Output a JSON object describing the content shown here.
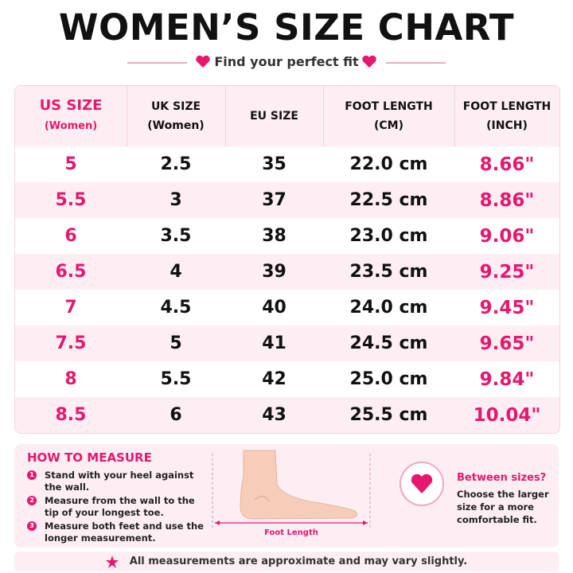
{
  "header": {
    "title": "WOMEN’S SIZE CHART",
    "subtitle": "Find your perfect fit"
  },
  "table": {
    "headers": [
      [
        "US SIZE",
        "(Women)"
      ],
      [
        "UK SIZE",
        "(Women)"
      ],
      [
        "EU SIZE"
      ],
      [
        "FOOT LENGTH",
        "(CM)"
      ],
      [
        "FOOT LENGTH",
        "(INCH)"
      ]
    ],
    "rows": [
      [
        "5",
        "2.5",
        "35",
        "22.0 cm",
        "8.66\""
      ],
      [
        "5.5",
        "3",
        "37",
        "22.5 cm",
        "8.86\""
      ],
      [
        "6",
        "3.5",
        "38",
        "23.0 cm",
        "9.06\""
      ],
      [
        "6.5",
        "4",
        "39",
        "23.5 cm",
        "9.25\""
      ],
      [
        "7",
        "4.5",
        "40",
        "24.0 cm",
        "9.45\""
      ],
      [
        "7.5",
        "5",
        "41",
        "24.5 cm",
        "9.65\""
      ],
      [
        "8",
        "5.5",
        "42",
        "25.0 cm",
        "9.84\""
      ],
      [
        "8.5",
        "6",
        "43",
        "25.5 cm",
        "10.04\""
      ]
    ]
  },
  "measure": {
    "heading": "HOW TO MEASURE",
    "steps": [
      "Stand with your heel against the wall.",
      "Measure from the wall to the tip of your longest toe.",
      "Measure both feet and use the longer measurement."
    ],
    "foot_label": "Foot Length"
  },
  "between": {
    "heading": "Between sizes?",
    "text": "Choose the larger size for a more comfortable fit."
  },
  "footer": {
    "note": "All measurements are approximate and may vary slightly."
  }
}
